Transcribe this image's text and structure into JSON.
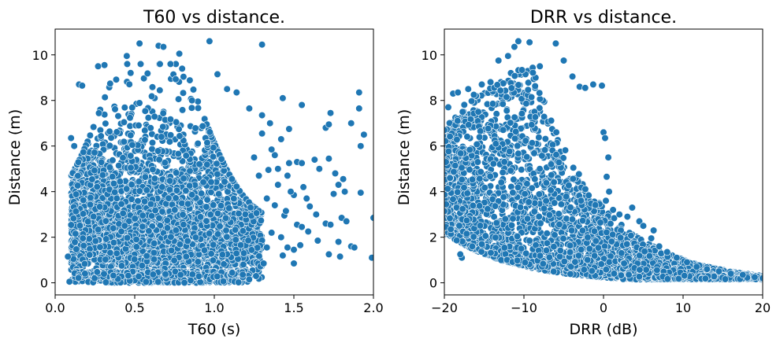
{
  "colors": {
    "point_fill": "#1f77b4",
    "point_stroke": "#ffffff",
    "axis": "#000000",
    "background": "#ffffff"
  },
  "chart_data": [
    {
      "type": "scatter",
      "title": "T60 vs distance.",
      "xlabel": "T60 (s)",
      "ylabel": "Distance (m)",
      "xlim": [
        0.0,
        2.0
      ],
      "ylim": [
        -0.53,
        11.13
      ],
      "xticks": [
        0.0,
        0.5,
        1.0,
        1.5,
        2.0
      ],
      "xtick_labels": [
        "0.0",
        "0.5",
        "1.0",
        "1.5",
        "2.0"
      ],
      "yticks": [
        0,
        2,
        4,
        6,
        8,
        10
      ],
      "ytick_labels": [
        "0",
        "2",
        "4",
        "6",
        "8",
        "10"
      ],
      "grid": false,
      "series": [
        {
          "name": "T60 vs distance",
          "dense_region": {
            "x_range": [
              0.1,
              1.3
            ],
            "y_range": [
              0.0,
              10.0
            ],
            "peak_x": 0.6
          },
          "points": [
            [
              0.09,
              0.05
            ],
            [
              0.08,
              1.15
            ],
            [
              0.1,
              6.35
            ],
            [
              0.12,
              6.0
            ],
            [
              0.15,
              8.7
            ],
            [
              0.17,
              8.65
            ],
            [
              0.27,
              9.5
            ],
            [
              0.31,
              9.55
            ],
            [
              0.45,
              9.95
            ],
            [
              0.53,
              10.5
            ],
            [
              0.65,
              10.4
            ],
            [
              0.68,
              10.35
            ],
            [
              0.78,
              10.05
            ],
            [
              0.97,
              10.6
            ],
            [
              1.02,
              9.15
            ],
            [
              1.08,
              8.5
            ],
            [
              1.3,
              10.45
            ],
            [
              1.14,
              8.35
            ],
            [
              1.22,
              7.65
            ],
            [
              1.3,
              7.35
            ],
            [
              1.35,
              7.0
            ],
            [
              1.3,
              6.55
            ],
            [
              1.43,
              8.1
            ],
            [
              1.55,
              7.8
            ],
            [
              1.47,
              6.75
            ],
            [
              1.38,
              5.6
            ],
            [
              1.4,
              5.0
            ],
            [
              1.46,
              4.7
            ],
            [
              1.52,
              5.3
            ],
            [
              1.55,
              5.25
            ],
            [
              1.63,
              5.4
            ],
            [
              1.66,
              5.0
            ],
            [
              1.72,
              5.45
            ],
            [
              1.7,
              6.8
            ],
            [
              1.73,
              7.45
            ],
            [
              1.72,
              6.95
            ],
            [
              1.76,
              4.8
            ],
            [
              1.78,
              4.3
            ],
            [
              1.81,
              4.55
            ],
            [
              1.86,
              7.0
            ],
            [
              1.91,
              7.65
            ],
            [
              1.91,
              8.35
            ],
            [
              1.94,
              6.5
            ],
            [
              1.92,
              6.0
            ],
            [
              1.92,
              3.95
            ],
            [
              1.82,
              4.0
            ],
            [
              1.75,
              3.9
            ],
            [
              1.8,
              2.85
            ],
            [
              1.83,
              2.7
            ],
            [
              1.78,
              1.8
            ],
            [
              1.86,
              1.6
            ],
            [
              1.88,
              1.55
            ],
            [
              1.99,
              1.1
            ],
            [
              2.0,
              2.85
            ],
            [
              1.7,
              2.6
            ],
            [
              1.73,
              2.55
            ],
            [
              1.65,
              1.85
            ],
            [
              1.64,
              3.0
            ],
            [
              1.58,
              3.7
            ],
            [
              1.6,
              3.35
            ],
            [
              1.56,
              4.2
            ],
            [
              1.5,
              3.85
            ],
            [
              1.52,
              2.55
            ],
            [
              1.55,
              2.45
            ],
            [
              1.59,
              2.25
            ],
            [
              1.5,
              1.45
            ],
            [
              1.54,
              1.65
            ],
            [
              1.46,
              1.55
            ],
            [
              1.43,
              1.2
            ],
            [
              1.5,
              0.85
            ],
            [
              1.72,
              1.25
            ],
            [
              1.79,
              1.15
            ],
            [
              1.4,
              4.3
            ],
            [
              1.38,
              3.4
            ],
            [
              1.36,
              2.2
            ],
            [
              1.44,
              2.95
            ],
            [
              1.45,
              3.15
            ],
            [
              1.34,
              4.95
            ],
            [
              1.33,
              3.7
            ],
            [
              1.42,
              2.0
            ],
            [
              1.47,
              5.25
            ],
            [
              1.48,
              4.0
            ],
            [
              1.42,
              6.3
            ],
            [
              1.36,
              5.85
            ],
            [
              1.25,
              5.5
            ],
            [
              1.28,
              4.7
            ],
            [
              1.33,
              1.55
            ],
            [
              1.31,
              0.85
            ]
          ]
        }
      ]
    },
    {
      "type": "scatter",
      "title": "DRR vs distance.",
      "xlabel": "DRR (dB)",
      "ylabel": "Distance (m)",
      "xlim": [
        -20,
        20
      ],
      "ylim": [
        -0.53,
        11.13
      ],
      "xticks": [
        -20,
        -10,
        0,
        10,
        20
      ],
      "xtick_labels": [
        "−20",
        "−10",
        "0",
        "10",
        "20"
      ],
      "yticks": [
        0,
        2,
        4,
        6,
        8,
        10
      ],
      "ytick_labels": [
        "0",
        "2",
        "4",
        "6",
        "8",
        "10"
      ],
      "grid": false,
      "series": [
        {
          "name": "DRR vs distance",
          "dense_region": {
            "x_range": [
              -20,
              20
            ],
            "envelope": "distance decreasing with DRR",
            "peak_x": -9
          },
          "points": [
            [
              -20.0,
              6.7
            ],
            [
              -19.5,
              7.7
            ],
            [
              -19.8,
              5.3
            ],
            [
              -19.3,
              4.6
            ],
            [
              -18.9,
              8.3
            ],
            [
              -18.3,
              8.35
            ],
            [
              -17.7,
              7.5
            ],
            [
              -17.0,
              8.5
            ],
            [
              -16.3,
              8.25
            ],
            [
              -15.3,
              8.7
            ],
            [
              -13.2,
              9.75
            ],
            [
              -12.0,
              9.95
            ],
            [
              -11.2,
              10.35
            ],
            [
              -10.7,
              10.6
            ],
            [
              -9.3,
              10.55
            ],
            [
              -8.0,
              9.5
            ],
            [
              -6.0,
              10.5
            ],
            [
              -5.0,
              9.75
            ],
            [
              -3.9,
              9.05
            ],
            [
              -3.0,
              8.6
            ],
            [
              -2.3,
              8.55
            ],
            [
              -1.3,
              8.7
            ],
            [
              -0.2,
              8.65
            ],
            [
              0.0,
              6.6
            ],
            [
              0.2,
              6.35
            ],
            [
              0.6,
              5.5
            ],
            [
              0.4,
              4.65
            ],
            [
              0.7,
              4.0
            ],
            [
              0.3,
              3.6
            ],
            [
              1.2,
              3.2
            ],
            [
              2.0,
              3.0
            ],
            [
              3.0,
              2.9
            ],
            [
              3.6,
              3.3
            ],
            [
              4.5,
              2.7
            ],
            [
              5.0,
              2.5
            ],
            [
              6.0,
              1.95
            ],
            [
              6.3,
              2.3
            ],
            [
              7.0,
              1.6
            ],
            [
              8.0,
              1.35
            ],
            [
              9.2,
              1.1
            ],
            [
              10.5,
              0.9
            ],
            [
              11.7,
              0.7
            ],
            [
              13.0,
              0.6
            ],
            [
              14.5,
              0.5
            ],
            [
              16.0,
              0.4
            ],
            [
              17.5,
              0.35
            ],
            [
              19.0,
              0.25
            ],
            [
              20.0,
              0.2
            ],
            [
              -17.8,
              1.1
            ],
            [
              -18.0,
              1.25
            ],
            [
              -16.5,
              1.6
            ],
            [
              -15.3,
              1.7
            ],
            [
              -17.2,
              2.15
            ],
            [
              -19.2,
              2.35
            ]
          ]
        }
      ]
    }
  ]
}
